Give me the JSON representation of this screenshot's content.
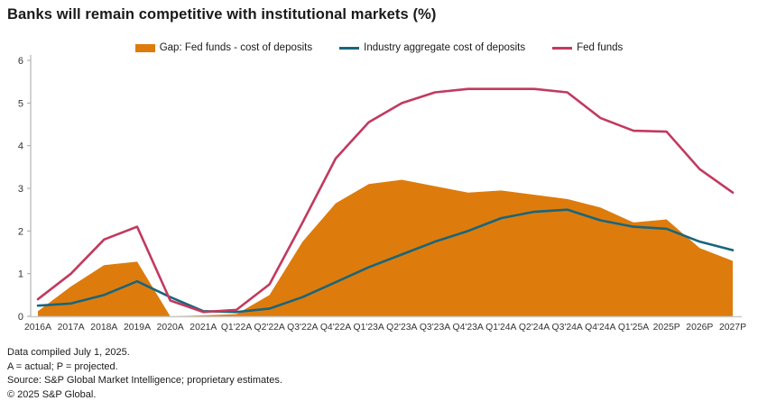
{
  "title": "Banks will remain competitive with institutional markets (%)",
  "legend": [
    {
      "label": "Gap: Fed funds - cost of deposits",
      "type": "area",
      "color": "#DD7C0C"
    },
    {
      "label": "Industry aggregate cost of deposits",
      "type": "line",
      "color": "#19657C"
    },
    {
      "label": "Fed funds",
      "type": "line",
      "color": "#C13A5F"
    }
  ],
  "footer": {
    "lines": [
      "Data compiled July 1, 2025.",
      "A = actual; P = projected.",
      "Source: S&P Global Market Intelligence; proprietary estimates.",
      "© 2025 S&P Global."
    ]
  },
  "chart_data": {
    "type": "area",
    "title": "Banks will remain competitive with institutional markets (%)",
    "xlabel": "",
    "ylabel": "",
    "ylim": [
      0,
      6
    ],
    "yticks": [
      0,
      1,
      2,
      3,
      4,
      5,
      6
    ],
    "grid": false,
    "legend_position": "top-center",
    "categories": [
      "2016A",
      "2017A",
      "2018A",
      "2019A",
      "2020A",
      "2021A",
      "Q1'22A",
      "Q2'22A",
      "Q3'22A",
      "Q4'22A",
      "Q1'23A",
      "Q2'23A",
      "Q3'23A",
      "Q4'23A",
      "Q1'24A",
      "Q2'24A",
      "Q3'24A",
      "Q4'24A",
      "Q1'25A",
      "2025P",
      "2026P",
      "2027P"
    ],
    "series": [
      {
        "name": "Gap: Fed funds - cost of deposits",
        "render": "area",
        "color": "#DD7C0C",
        "values": [
          0.12,
          0.7,
          1.2,
          1.28,
          0.0,
          0.02,
          0.05,
          0.5,
          1.75,
          2.65,
          3.1,
          3.2,
          3.05,
          2.9,
          2.95,
          2.85,
          2.75,
          2.55,
          2.2,
          2.27,
          1.6,
          1.3
        ]
      },
      {
        "name": "Industry aggregate cost of deposits",
        "render": "line",
        "color": "#19657C",
        "values": [
          0.25,
          0.3,
          0.5,
          0.82,
          0.45,
          0.12,
          0.1,
          0.18,
          0.45,
          0.8,
          1.15,
          1.45,
          1.75,
          2.0,
          2.3,
          2.45,
          2.5,
          2.25,
          2.1,
          2.05,
          1.75,
          1.55
        ]
      },
      {
        "name": "Fed funds",
        "render": "line",
        "color": "#C13A5F",
        "values": [
          0.4,
          1.0,
          1.8,
          2.1,
          0.37,
          0.1,
          0.15,
          0.75,
          2.2,
          3.7,
          4.55,
          5.0,
          5.25,
          5.33,
          5.33,
          5.33,
          5.25,
          4.65,
          4.35,
          4.33,
          3.45,
          2.9
        ]
      }
    ],
    "axis_color": "#a6a6a6",
    "label_color": "#333333"
  }
}
